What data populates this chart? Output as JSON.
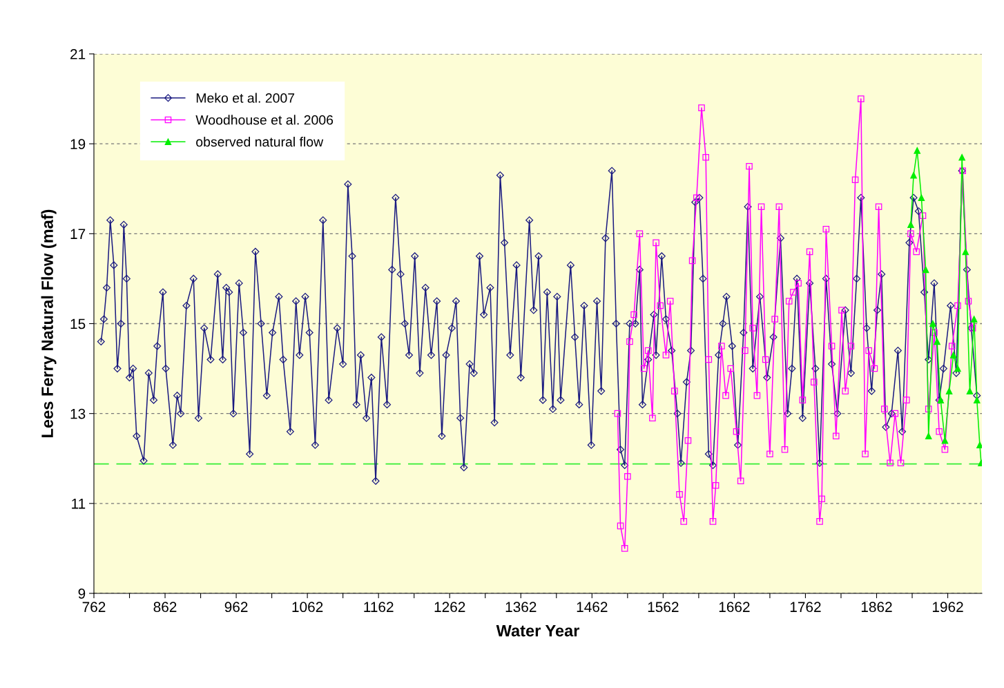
{
  "chart_data": {
    "type": "line",
    "xlabel": "Water Year",
    "ylabel": "Lees Ferry Natural Flow (maf)",
    "xlim": [
      762,
      2010
    ],
    "xticks": [
      762,
      {
        "value": 812,
        "label": null
      },
      862,
      {
        "value": 912,
        "label": null
      },
      962,
      {
        "value": 1012,
        "label": null
      },
      1062,
      {
        "value": 1112,
        "label": null
      },
      1162,
      {
        "value": 1212,
        "label": null
      },
      1262,
      {
        "value": 1312,
        "label": null
      },
      1362,
      {
        "value": 1412,
        "label": null
      },
      1462,
      {
        "value": 1512,
        "label": null
      },
      1562,
      {
        "value": 1612,
        "label": null
      },
      1662,
      {
        "value": 1712,
        "label": null
      },
      1762,
      {
        "value": 1812,
        "label": null
      },
      1862,
      {
        "value": 1912,
        "label": null
      },
      1962
    ],
    "ylim": [
      9,
      21
    ],
    "yticks": [
      9,
      11,
      13,
      15,
      17,
      19,
      21
    ],
    "grid": "y",
    "legend": "top left",
    "ref_lines": [
      {
        "axis": "y",
        "value": 11.88,
        "color": "#33ee33",
        "line_style": "dashed"
      }
    ],
    "series": [
      {
        "name": "Meko et al. 2007",
        "color": "#1a1a80",
        "marker": "diamond",
        "x": [
          772,
          776,
          780,
          785,
          790,
          795,
          800,
          804,
          808,
          812,
          817,
          822,
          832,
          839,
          846,
          851,
          859,
          863,
          873,
          879,
          884,
          892,
          902,
          909,
          917,
          926,
          936,
          943,
          948,
          952,
          958,
          966,
          972,
          981,
          989,
          997,
          1005,
          1013,
          1022,
          1028,
          1038,
          1046,
          1051,
          1059,
          1065,
          1073,
          1084,
          1092,
          1104,
          1112,
          1119,
          1125,
          1131,
          1137,
          1145,
          1152,
          1158,
          1166,
          1174,
          1181,
          1186,
          1193,
          1199,
          1205,
          1213,
          1220,
          1228,
          1236,
          1244,
          1251,
          1257,
          1265,
          1271,
          1277,
          1282,
          1290,
          1296,
          1304,
          1310,
          1319,
          1325,
          1333,
          1339,
          1347,
          1356,
          1362,
          1374,
          1380,
          1387,
          1393,
          1399,
          1407,
          1413,
          1418,
          1432,
          1438,
          1444,
          1451,
          1461,
          1469,
          1475,
          1481,
          1490,
          1496,
          1502,
          1508,
          1515,
          1523,
          1529,
          1533,
          1541,
          1549,
          1552,
          1560,
          1566,
          1574,
          1582,
          1587,
          1595,
          1601,
          1607,
          1613,
          1618,
          1626,
          1632,
          1640,
          1646,
          1651,
          1659,
          1667,
          1675,
          1681,
          1688,
          1698,
          1708,
          1717,
          1727,
          1737,
          1743,
          1750,
          1758,
          1768,
          1776,
          1782,
          1791,
          1799,
          1807,
          1818,
          1826,
          1834,
          1840,
          1848,
          1855,
          1863,
          1869,
          1875,
          1883,
          1892,
          1898,
          1908,
          1914,
          1921,
          1929,
          1935,
          1943,
          1950,
          1956,
          1966,
          1974,
          1982,
          1989,
          1995,
          2003
        ],
        "values": [
          14.6,
          15.1,
          15.8,
          17.3,
          16.3,
          14.0,
          15.0,
          17.2,
          16.0,
          13.8,
          14.0,
          12.5,
          11.95,
          13.9,
          13.3,
          14.5,
          15.7,
          14.0,
          12.3,
          13.4,
          13.0,
          15.4,
          16.0,
          12.9,
          14.9,
          14.2,
          16.1,
          14.2,
          15.8,
          15.7,
          13.0,
          15.9,
          14.8,
          12.1,
          16.6,
          15.0,
          13.4,
          14.8,
          15.6,
          14.2,
          12.6,
          15.5,
          14.3,
          15.6,
          14.8,
          12.3,
          17.3,
          13.3,
          14.9,
          14.1,
          18.1,
          16.5,
          13.2,
          14.3,
          12.9,
          13.8,
          11.5,
          14.7,
          13.2,
          16.2,
          17.8,
          16.1,
          15.0,
          14.3,
          16.5,
          13.9,
          15.8,
          14.3,
          15.5,
          12.5,
          14.3,
          14.9,
          15.5,
          12.9,
          11.8,
          14.1,
          13.9,
          16.5,
          15.2,
          15.8,
          12.8,
          18.3,
          16.8,
          14.3,
          16.3,
          13.8,
          17.3,
          15.3,
          16.5,
          13.3,
          15.7,
          13.1,
          15.6,
          13.3,
          16.3,
          14.7,
          13.2,
          15.4,
          12.3,
          15.5,
          13.5,
          16.9,
          18.4,
          15.0,
          12.2,
          11.85,
          15.0,
          15.0,
          16.2,
          13.2,
          14.2,
          15.2,
          14.3,
          16.5,
          15.1,
          14.4,
          13.0,
          11.9,
          13.7,
          14.4,
          17.7,
          17.8,
          16.0,
          12.1,
          11.85,
          14.3,
          15.0,
          15.6,
          14.5,
          12.3,
          14.8,
          17.6,
          14.0,
          15.6,
          13.8,
          14.7,
          16.9,
          13.0,
          14.0,
          16.0,
          12.9,
          15.9,
          14.0,
          11.9,
          16.0,
          14.1,
          13.0,
          15.3,
          13.9,
          16.0,
          17.8,
          14.9,
          13.5,
          15.3,
          16.1,
          12.7,
          13.0,
          14.4,
          12.6,
          16.8,
          17.8,
          17.5,
          15.7,
          14.2,
          15.9,
          13.3,
          14.0,
          15.4,
          13.9,
          18.4,
          16.2,
          14.9,
          13.4
        ]
      },
      {
        "name": "Woodhouse et al. 2006",
        "color": "#ff00ff",
        "marker": "square",
        "x": [
          1498,
          1502,
          1508,
          1512,
          1515,
          1521,
          1529,
          1535,
          1541,
          1547,
          1552,
          1558,
          1566,
          1572,
          1578,
          1585,
          1591,
          1597,
          1603,
          1609,
          1616,
          1622,
          1626,
          1632,
          1636,
          1644,
          1650,
          1657,
          1665,
          1671,
          1677,
          1683,
          1688,
          1694,
          1700,
          1706,
          1712,
          1719,
          1725,
          1733,
          1739,
          1745,
          1752,
          1758,
          1768,
          1774,
          1782,
          1785,
          1791,
          1799,
          1805,
          1813,
          1818,
          1826,
          1832,
          1840,
          1846,
          1851,
          1859,
          1865,
          1873,
          1881,
          1888,
          1896,
          1904,
          1910,
          1918,
          1927,
          1935,
          1943,
          1950,
          1958,
          1968,
          1976,
          1983,
          1991,
          1997
        ],
        "values": [
          13.0,
          10.5,
          10.0,
          11.6,
          14.6,
          15.2,
          17.0,
          14.0,
          14.4,
          12.9,
          16.8,
          15.4,
          14.3,
          15.5,
          13.5,
          11.2,
          10.6,
          12.4,
          16.4,
          17.8,
          19.8,
          18.7,
          14.2,
          10.6,
          11.4,
          14.5,
          13.4,
          14.0,
          12.6,
          11.5,
          14.4,
          18.5,
          14.9,
          13.4,
          17.6,
          14.2,
          12.1,
          15.1,
          17.6,
          12.2,
          15.5,
          15.7,
          15.9,
          13.3,
          16.6,
          13.7,
          10.6,
          11.1,
          17.1,
          14.5,
          12.5,
          15.3,
          13.5,
          14.5,
          18.2,
          20.0,
          12.1,
          14.4,
          14.0,
          17.6,
          13.1,
          11.9,
          13.0,
          11.9,
          13.3,
          17.0,
          16.6,
          17.4,
          13.1,
          14.8,
          12.6,
          12.2,
          14.5,
          15.4,
          18.4,
          15.5,
          14.9
        ]
      },
      {
        "name": "observed natural flow",
        "color": "#00ee00",
        "marker": "triangle",
        "x": [
          1910,
          1914,
          1919,
          1925,
          1931,
          1935,
          1941,
          1947,
          1952,
          1958,
          1964,
          1970,
          1976,
          1982,
          1987,
          1993,
          1999,
          2003,
          2007,
          2009
        ],
        "values": [
          17.2,
          18.3,
          18.85,
          17.8,
          16.2,
          12.5,
          15.0,
          14.6,
          13.3,
          12.4,
          13.5,
          14.3,
          14.0,
          18.7,
          16.6,
          13.5,
          15.1,
          13.3,
          12.3,
          11.9
        ]
      }
    ]
  }
}
